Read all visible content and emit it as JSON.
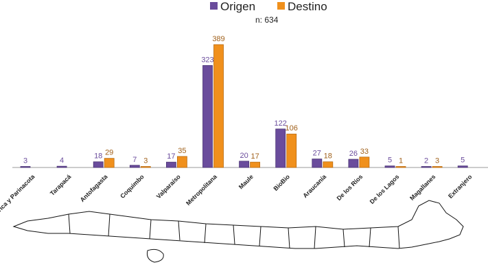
{
  "chart_data": {
    "type": "bar",
    "title": "",
    "subtitle": "n: 634",
    "categories": [
      "Arica y Parinacota",
      "Tarapacá",
      "Antofagasta",
      "Coquimbo",
      "Valparaíso",
      "Metropolitana",
      "Maule",
      "BioBio",
      "Araucanía",
      "De los Ríos",
      "De los Lagos",
      "Magallanes",
      "Extranjero"
    ],
    "series": [
      {
        "name": "Origen",
        "color": "#6a4c9c",
        "label_color": "#6a4c9c",
        "values": [
          3,
          4,
          18,
          7,
          17,
          323,
          20,
          122,
          27,
          26,
          5,
          2,
          5
        ]
      },
      {
        "name": "Destino",
        "color": "#f0901c",
        "label_color": "#a0601a",
        "values": [
          null,
          null,
          29,
          3,
          35,
          389,
          17,
          106,
          18,
          33,
          1,
          3,
          null
        ]
      }
    ],
    "ylim": [
      0,
      400
    ],
    "grid": false,
    "legend_position": "top-center"
  }
}
